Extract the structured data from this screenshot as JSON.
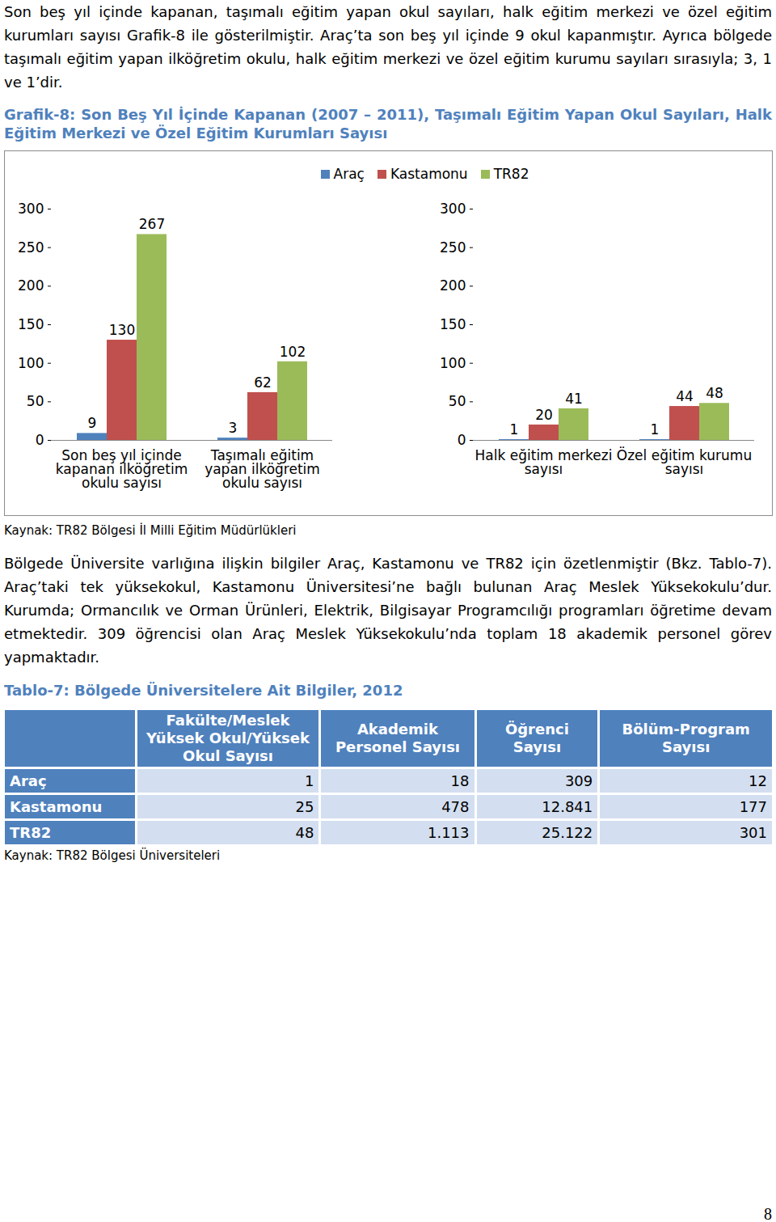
{
  "paragraphs": [
    "Son beş yıl içinde kapanan, taşımalı eğitim yapan okul sayıları, halk eğitim merkezi ve özel eğitim kurumları sayısı Grafik-8 ile gösterilmiştir. Araç’ta son beş yıl içinde 9 okul kapanmıştır. Ayrıca bölgede taşımalı eğitim yapan ilköğretim okulu, halk eğitim merkezi ve özel eğitim kurumu sayıları sırasıyla; 3, 1 ve 1’dir.",
    "Bölgede Üniversite varlığına ilişkin bilgiler Araç, Kastamonu ve TR82 için özetlenmiştir (Bkz. Tablo-7). Araç’taki tek yüksekokul, Kastamonu Üniversitesi’ne bağlı bulunan Araç Meslek Yüksekokulu’dur. Kurumda; Ormancılık ve Orman Ürünleri, Elektrik, Bilgisayar Programcılığı programları öğretime devam etmektedir. 309 öğrencisi olan Araç Meslek Yüksekokulu’nda toplam 18 akademik personel görev yapmaktadır."
  ],
  "chart_data": {
    "type": "bar",
    "title": "Grafik-8: Son Beş Yıl İçinde Kapanan (2007 – 2011), Taşımalı Eğitim Yapan Okul Sayıları, Halk Eğitim Merkezi ve Özel Eğitim Kurumları Sayısı",
    "categories": [
      "Son beş yıl içinde kapanan ilköğretim okulu sayısı",
      "Taşımalı eğitim yapan ilköğretim okulu sayısı",
      null,
      "Halk eğitim merkezi sayısı",
      "Özel eğitim kurumu sayısı"
    ],
    "series": [
      {
        "name": "Araç",
        "color": "#4f81bd",
        "values": [
          9,
          3,
          null,
          1,
          1
        ]
      },
      {
        "name": "Kastamonu",
        "color": "#c0504d",
        "values": [
          130,
          62,
          null,
          20,
          44
        ]
      },
      {
        "name": "TR82",
        "color": "#9bbb59",
        "values": [
          267,
          102,
          null,
          41,
          48
        ]
      }
    ],
    "ylim": [
      0,
      300
    ],
    "yticks": [
      0,
      50,
      100,
      150,
      200,
      250,
      300
    ],
    "grid": false,
    "legend": "top",
    "data_labels": true
  },
  "chart_source": "Kaynak: TR82 Bölgesi İl Milli Eğitim Müdürlükleri",
  "table": {
    "title": "Tablo-7: Bölgede Üniversitelere Ait Bilgiler, 2012",
    "header": [
      "",
      "Fakülte/Meslek Yüksek Okul/Yüksek Okul Sayısı",
      "Akademik Personel Sayısı",
      "Öğrenci Sayısı",
      "Bölüm-Program Sayısı"
    ],
    "rows": [
      [
        "Araç",
        "1",
        "18",
        "309",
        "12"
      ],
      [
        "Kastamonu",
        "25",
        "478",
        "12.841",
        "177"
      ],
      [
        "TR82",
        "48",
        "1.113",
        "25.122",
        "301"
      ]
    ],
    "source": "Kaynak: TR82 Bölgesi Üniversiteleri"
  },
  "page_number": "8"
}
